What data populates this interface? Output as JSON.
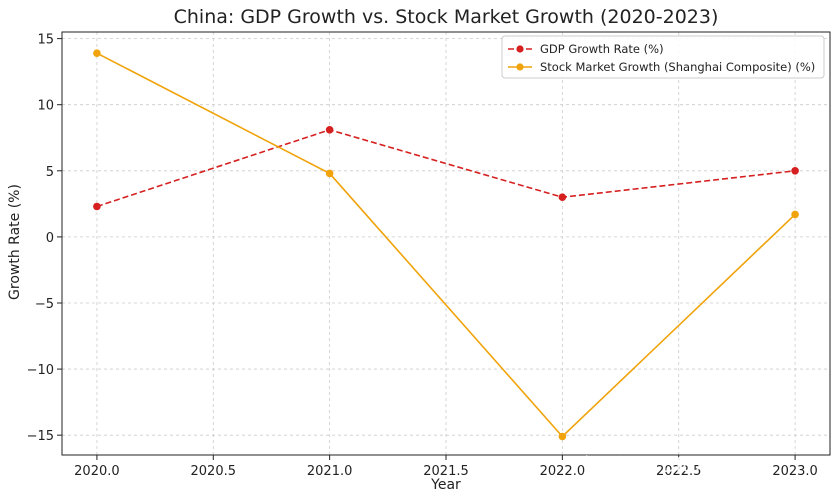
{
  "chart_data": {
    "type": "line",
    "title": "China: GDP Growth vs. Stock Market Growth (2020-2023)",
    "xlabel": "Year",
    "ylabel": "Growth Rate (%)",
    "xlim": [
      2019.85,
      2023.15
    ],
    "ylim": [
      -16.5,
      15.5
    ],
    "x_ticks": [
      2020.0,
      2020.5,
      2021.0,
      2021.5,
      2022.0,
      2022.5,
      2023.0
    ],
    "x_tick_labels": [
      "2020.0",
      "2020.5",
      "2021.0",
      "2021.5",
      "2022.0",
      "2022.5",
      "2023.0"
    ],
    "y_ticks": [
      -15,
      -10,
      -5,
      0,
      5,
      10,
      15
    ],
    "y_tick_labels": [
      "−15",
      "−10",
      "−5",
      "0",
      "5",
      "10",
      "15"
    ],
    "grid": true,
    "legend_position": "top-right",
    "x": [
      2020,
      2021,
      2022,
      2023
    ],
    "series": [
      {
        "name": "GDP Growth Rate (%)",
        "values": [
          2.3,
          8.1,
          3.0,
          5.0
        ],
        "color": "#d62020",
        "line_style": "dashed"
      },
      {
        "name": "Stock Market Growth (Shanghai Composite) (%)",
        "values": [
          13.9,
          4.8,
          -15.1,
          1.7
        ],
        "color": "#f0a30a",
        "line_style": "solid"
      }
    ]
  },
  "watermark": "知乎 @TBfoxmulder"
}
